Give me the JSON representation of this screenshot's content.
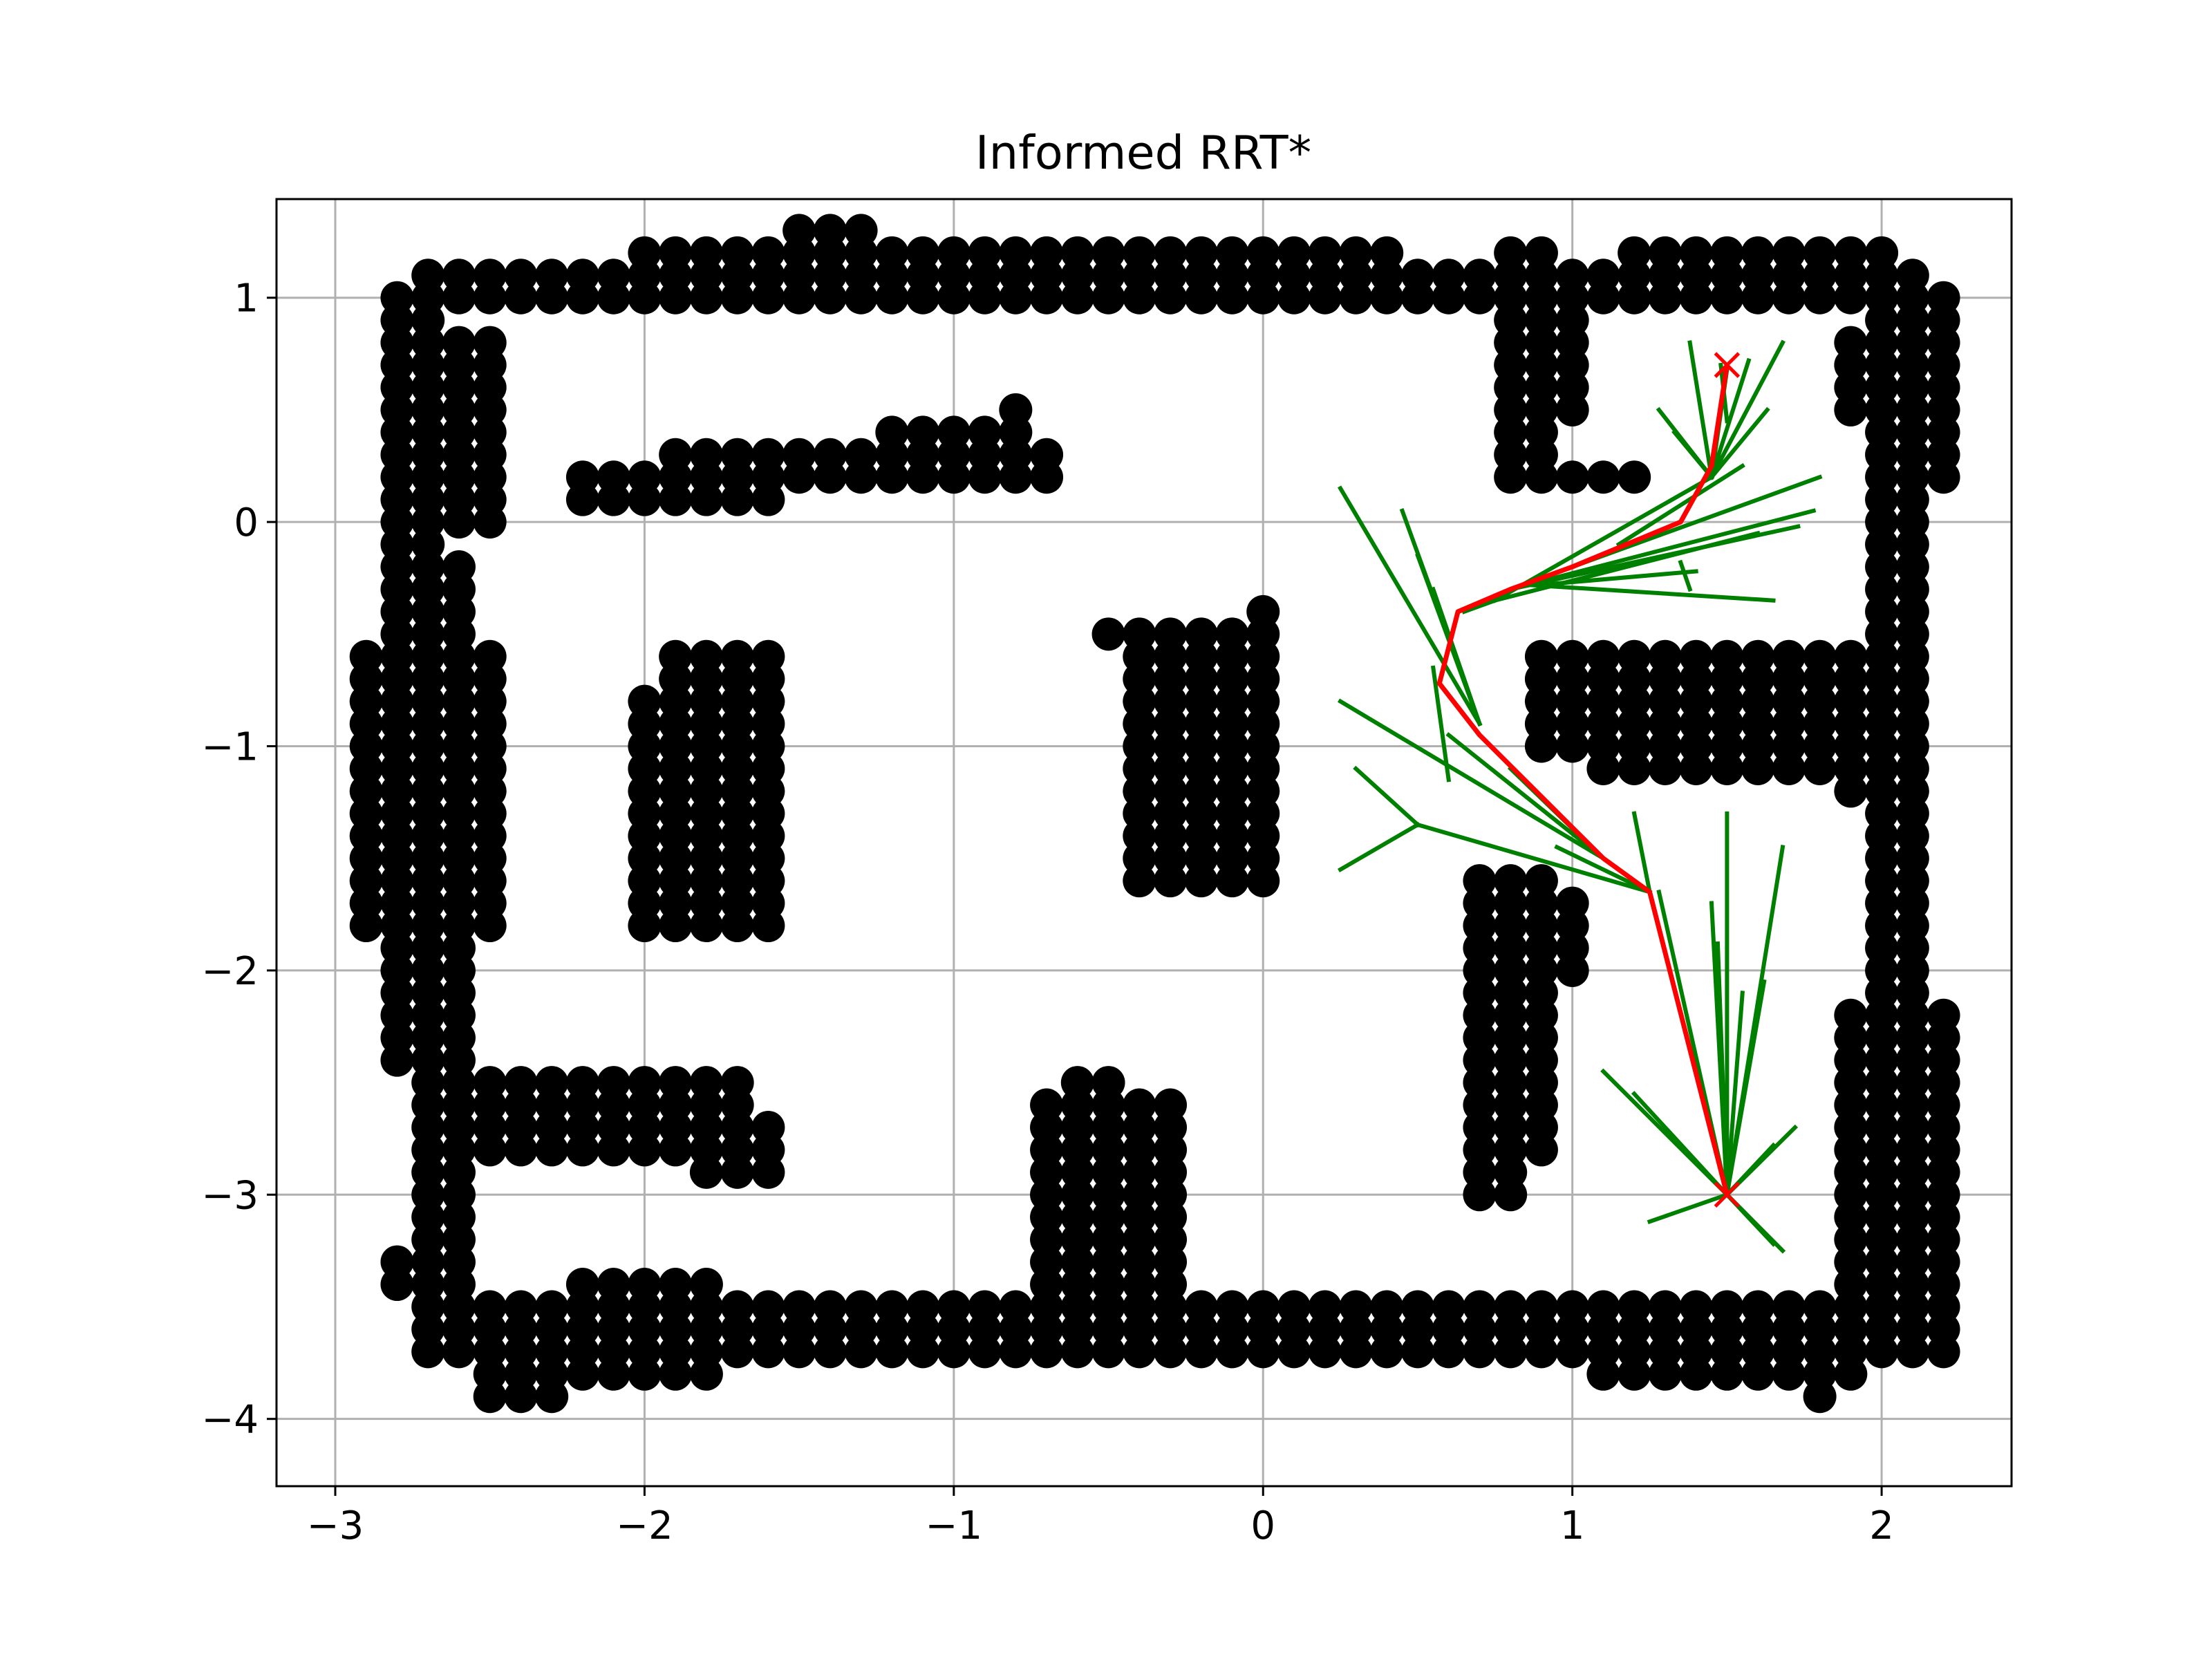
{
  "chart_data": {
    "type": "scatter",
    "title": "Informed RRT*",
    "xlabel": "",
    "ylabel": "",
    "xlim": [
      -3.19,
      2.42
    ],
    "ylim": [
      -4.3,
      1.44
    ],
    "grid": true,
    "x_ticks": [
      {
        "value": -3,
        "label": "−3"
      },
      {
        "value": -2,
        "label": "−2"
      },
      {
        "value": -1,
        "label": "−1"
      },
      {
        "value": 0,
        "label": "0"
      },
      {
        "value": 1,
        "label": "1"
      },
      {
        "value": 2,
        "label": "2"
      }
    ],
    "y_ticks": [
      {
        "value": 1,
        "label": "1"
      },
      {
        "value": 0,
        "label": "0"
      },
      {
        "value": -1,
        "label": "−1"
      },
      {
        "value": -2,
        "label": "−2"
      },
      {
        "value": -3,
        "label": "−3"
      },
      {
        "value": -4,
        "label": "−4"
      }
    ],
    "colors": {
      "obstacles": "#000000",
      "tree": "#008000",
      "path": "#ff0000",
      "grid": "#b0b0b0"
    },
    "obstacle_cell_size": 0.1,
    "obstacles": [
      {
        "x": [
          -2.8,
          -2.7
        ],
        "y": [
          -2.4,
          1.0
        ]
      },
      {
        "x": [
          -2.7,
          2.1
        ],
        "y": [
          1.0,
          1.1
        ]
      },
      {
        "x": [
          -2.0,
          0.4
        ],
        "y": [
          1.1,
          1.2
        ]
      },
      {
        "x": [
          -1.5,
          -1.3
        ],
        "y": [
          1.2,
          1.3
        ]
      },
      {
        "x": [
          -2.6,
          -2.5
        ],
        "y": [
          0.0,
          0.8
        ]
      },
      {
        "x": [
          -2.7,
          -2.6
        ],
        "y": [
          -3.7,
          -0.2
        ]
      },
      {
        "x": [
          -2.9,
          -2.5
        ],
        "y": [
          -1.8,
          -0.6
        ]
      },
      {
        "x": [
          -2.5,
          -2.5
        ],
        "y": [
          -1.6,
          -1.6
        ]
      },
      {
        "x": [
          -2.2,
          -1.6
        ],
        "y": [
          0.1,
          0.2
        ]
      },
      {
        "x": [
          -1.9,
          -0.7
        ],
        "y": [
          0.2,
          0.3
        ]
      },
      {
        "x": [
          -1.2,
          -0.8
        ],
        "y": [
          0.3,
          0.4
        ]
      },
      {
        "x": [
          -0.8,
          -0.8
        ],
        "y": [
          0.5,
          0.5
        ]
      },
      {
        "x": [
          -0.7,
          -0.7
        ],
        "y": [
          0.3,
          0.3
        ]
      },
      {
        "x": [
          -2.0,
          -1.6
        ],
        "y": [
          -1.8,
          -0.8
        ]
      },
      {
        "x": [
          -1.9,
          -1.6
        ],
        "y": [
          -1.6,
          -0.6
        ]
      },
      {
        "x": [
          -0.5,
          -0.5
        ],
        "y": [
          -0.5,
          -0.5
        ]
      },
      {
        "x": [
          -0.4,
          0.0
        ],
        "y": [
          -1.6,
          -0.5
        ]
      },
      {
        "x": [
          0.0,
          0.0
        ],
        "y": [
          -0.4,
          -0.4
        ]
      },
      {
        "x": [
          0.8,
          0.9
        ],
        "y": [
          0.2,
          1.2
        ]
      },
      {
        "x": [
          1.0,
          1.2
        ],
        "y": [
          0.2,
          0.2
        ]
      },
      {
        "x": [
          1.0,
          1.0
        ],
        "y": [
          0.5,
          0.9
        ]
      },
      {
        "x": [
          1.2,
          2.0
        ],
        "y": [
          1.2,
          1.2
        ]
      },
      {
        "x": [
          1.9,
          2.0
        ],
        "y": [
          0.5,
          0.8
        ]
      },
      {
        "x": [
          2.0,
          2.1
        ],
        "y": [
          -3.6,
          1.1
        ]
      },
      {
        "x": [
          2.2,
          2.2
        ],
        "y": [
          0.2,
          1.0
        ]
      },
      {
        "x": [
          0.9,
          1.9
        ],
        "y": [
          -1.0,
          -0.6
        ]
      },
      {
        "x": [
          1.1,
          1.9
        ],
        "y": [
          -1.1,
          -0.9
        ]
      },
      {
        "x": [
          1.9,
          1.9
        ],
        "y": [
          -1.2,
          -1.2
        ]
      },
      {
        "x": [
          0.7,
          0.9
        ],
        "y": [
          -2.8,
          -1.6
        ]
      },
      {
        "x": [
          0.7,
          0.8
        ],
        "y": [
          -3.0,
          -2.9
        ]
      },
      {
        "x": [
          1.0,
          1.0
        ],
        "y": [
          -2.0,
          -1.7
        ]
      },
      {
        "x": [
          -2.6,
          -1.7
        ],
        "y": [
          -2.8,
          -2.5
        ]
      },
      {
        "x": [
          -1.8,
          -1.6
        ],
        "y": [
          -2.9,
          -2.7
        ]
      },
      {
        "x": [
          -0.7,
          -0.3
        ],
        "y": [
          -3.6,
          -2.6
        ]
      },
      {
        "x": [
          -0.6,
          -0.5
        ],
        "y": [
          -2.5,
          -2.5
        ]
      },
      {
        "x": [
          -2.7,
          1.8
        ],
        "y": [
          -3.7,
          -3.5
        ]
      },
      {
        "x": [
          -2.5,
          -2.3
        ],
        "y": [
          -3.9,
          -3.8
        ]
      },
      {
        "x": [
          -2.2,
          -1.8
        ],
        "y": [
          -3.8,
          -3.4
        ]
      },
      {
        "x": [
          -2.8,
          -2.8
        ],
        "y": [
          -3.4,
          -3.3
        ]
      },
      {
        "x": [
          1.1,
          1.9
        ],
        "y": [
          -3.8,
          -3.7
        ]
      },
      {
        "x": [
          1.8,
          1.8
        ],
        "y": [
          -3.9,
          -3.9
        ]
      },
      {
        "x": [
          1.9,
          2.2
        ],
        "y": [
          -3.7,
          -2.2
        ]
      }
    ],
    "tree_edges": [
      [
        [
          1.5,
          -3.0
        ],
        [
          1.5,
          -1.3
        ]
      ],
      [
        [
          1.5,
          -3.0
        ],
        [
          1.47,
          -1.88
        ]
      ],
      [
        [
          1.5,
          -3.0
        ],
        [
          1.55,
          -2.1
        ]
      ],
      [
        [
          1.5,
          -3.0
        ],
        [
          1.45,
          -1.7
        ]
      ],
      [
        [
          1.5,
          -3.0
        ],
        [
          1.68,
          -1.45
        ]
      ],
      [
        [
          1.5,
          -3.0
        ],
        [
          1.62,
          -2.05
        ]
      ],
      [
        [
          1.5,
          -3.0
        ],
        [
          1.28,
          -1.65
        ]
      ],
      [
        [
          1.5,
          -3.0
        ],
        [
          1.1,
          -2.45
        ]
      ],
      [
        [
          1.5,
          -3.0
        ],
        [
          1.2,
          -2.55
        ]
      ],
      [
        [
          1.5,
          -3.0
        ],
        [
          1.25,
          -3.12
        ]
      ],
      [
        [
          1.5,
          -3.0
        ],
        [
          1.68,
          -3.25
        ]
      ],
      [
        [
          1.5,
          -3.0
        ],
        [
          1.65,
          -3.22
        ]
      ],
      [
        [
          1.5,
          -3.0
        ],
        [
          1.65,
          -2.78
        ]
      ],
      [
        [
          1.5,
          -3.0
        ],
        [
          1.72,
          -2.7
        ]
      ],
      [
        [
          1.5,
          -3.0
        ],
        [
          1.25,
          -1.65
        ]
      ],
      [
        [
          1.25,
          -1.65
        ],
        [
          0.95,
          -1.45
        ]
      ],
      [
        [
          1.25,
          -1.65
        ],
        [
          1.2,
          -1.3
        ]
      ],
      [
        [
          1.25,
          -1.65
        ],
        [
          0.5,
          -1.35
        ]
      ],
      [
        [
          1.1,
          -1.5
        ],
        [
          0.25,
          -0.8
        ]
      ],
      [
        [
          1.1,
          -1.5
        ],
        [
          0.6,
          -0.95
        ]
      ],
      [
        [
          1.1,
          -1.5
        ],
        [
          0.8,
          -1.1
        ]
      ],
      [
        [
          0.5,
          -1.35
        ],
        [
          0.25,
          -1.55
        ]
      ],
      [
        [
          0.5,
          -1.35
        ],
        [
          0.3,
          -1.1
        ]
      ],
      [
        [
          0.6,
          -1.15
        ],
        [
          0.55,
          -0.65
        ]
      ],
      [
        [
          0.7,
          -0.9
        ],
        [
          0.25,
          0.15
        ]
      ],
      [
        [
          0.7,
          -0.9
        ],
        [
          0.45,
          0.05
        ]
      ],
      [
        [
          0.7,
          -0.9
        ],
        [
          0.5,
          -0.15
        ]
      ],
      [
        [
          0.7,
          -0.9
        ],
        [
          0.55,
          -0.3
        ]
      ],
      [
        [
          0.65,
          -0.4
        ],
        [
          0.75,
          -0.35
        ]
      ],
      [
        [
          0.75,
          -0.35
        ],
        [
          1.45,
          0.2
        ]
      ],
      [
        [
          0.75,
          -0.35
        ],
        [
          1.6,
          -0.05
        ]
      ],
      [
        [
          0.8,
          -0.3
        ],
        [
          1.78,
          0.05
        ]
      ],
      [
        [
          0.8,
          -0.3
        ],
        [
          1.73,
          -0.02
        ]
      ],
      [
        [
          0.85,
          -0.28
        ],
        [
          1.65,
          -0.35
        ]
      ],
      [
        [
          0.9,
          -0.28
        ],
        [
          1.4,
          -0.22
        ]
      ],
      [
        [
          1.0,
          -0.2
        ],
        [
          1.8,
          0.2
        ]
      ],
      [
        [
          1.15,
          -0.1
        ],
        [
          1.55,
          0.25
        ]
      ],
      [
        [
          1.38,
          -0.3
        ],
        [
          1.35,
          -0.18
        ]
      ],
      [
        [
          1.45,
          0.2
        ],
        [
          1.33,
          0.4
        ]
      ],
      [
        [
          1.45,
          0.2
        ],
        [
          1.28,
          0.5
        ]
      ],
      [
        [
          1.45,
          0.2
        ],
        [
          1.38,
          0.8
        ]
      ],
      [
        [
          1.45,
          0.2
        ],
        [
          1.63,
          0.5
        ]
      ],
      [
        [
          1.45,
          0.2
        ],
        [
          1.68,
          0.8
        ]
      ],
      [
        [
          1.45,
          0.2
        ],
        [
          1.57,
          0.72
        ]
      ],
      [
        [
          1.45,
          0.2
        ],
        [
          1.5,
          0.68
        ]
      ],
      [
        [
          1.5,
          0.45
        ],
        [
          1.48,
          0.7
        ]
      ]
    ],
    "path": {
      "x": [
        1.5,
        1.25,
        1.1,
        0.7,
        0.57,
        0.63,
        0.8,
        1.0,
        1.35,
        1.45,
        1.5
      ],
      "y": [
        -3.0,
        -1.65,
        -1.5,
        -0.95,
        -0.72,
        -0.4,
        -0.3,
        -0.2,
        0.0,
        0.25,
        0.7
      ]
    },
    "start": {
      "x": 1.5,
      "y": -3.0
    },
    "goal": {
      "x": 1.5,
      "y": 0.7
    }
  }
}
